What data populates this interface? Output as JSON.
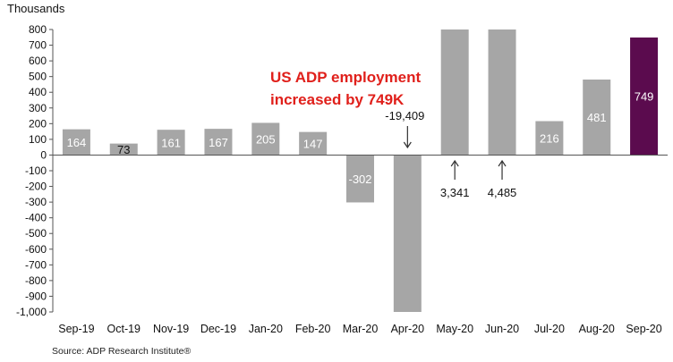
{
  "chart_data": {
    "type": "bar",
    "ylabel": "Thousands",
    "ylim": [
      -1000,
      800
    ],
    "ytick_step": 100,
    "categories": [
      "Sep-19",
      "Oct-19",
      "Nov-19",
      "Dec-19",
      "Jan-20",
      "Feb-20",
      "Mar-20",
      "Apr-20",
      "May-20",
      "Jun-20",
      "Jul-20",
      "Aug-20",
      "Sep-20"
    ],
    "values": [
      164,
      73,
      161,
      167,
      205,
      147,
      -302,
      -19409,
      3341,
      4485,
      216,
      481,
      749
    ],
    "data_labels": [
      "164",
      "73",
      "161",
      "167",
      "205",
      "147",
      "-302",
      "-19,409",
      "3,341",
      "4,485",
      "216",
      "481",
      "749"
    ],
    "callouts": [
      {
        "category": "Apr-20",
        "label": "-19,409",
        "direction": "down"
      },
      {
        "category": "May-20",
        "label": "3,341",
        "direction": "up"
      },
      {
        "category": "Jun-20",
        "label": "4,485",
        "direction": "up"
      }
    ],
    "highlight": {
      "category": "Sep-20",
      "color": "#5b0b4e"
    },
    "bar_color": "#a6a6a6",
    "grid": false,
    "annotation": "US ADP employment\nincreased by 749K",
    "annotation_color": "#e0201b",
    "source": "Source: ADP Research Institute®"
  }
}
